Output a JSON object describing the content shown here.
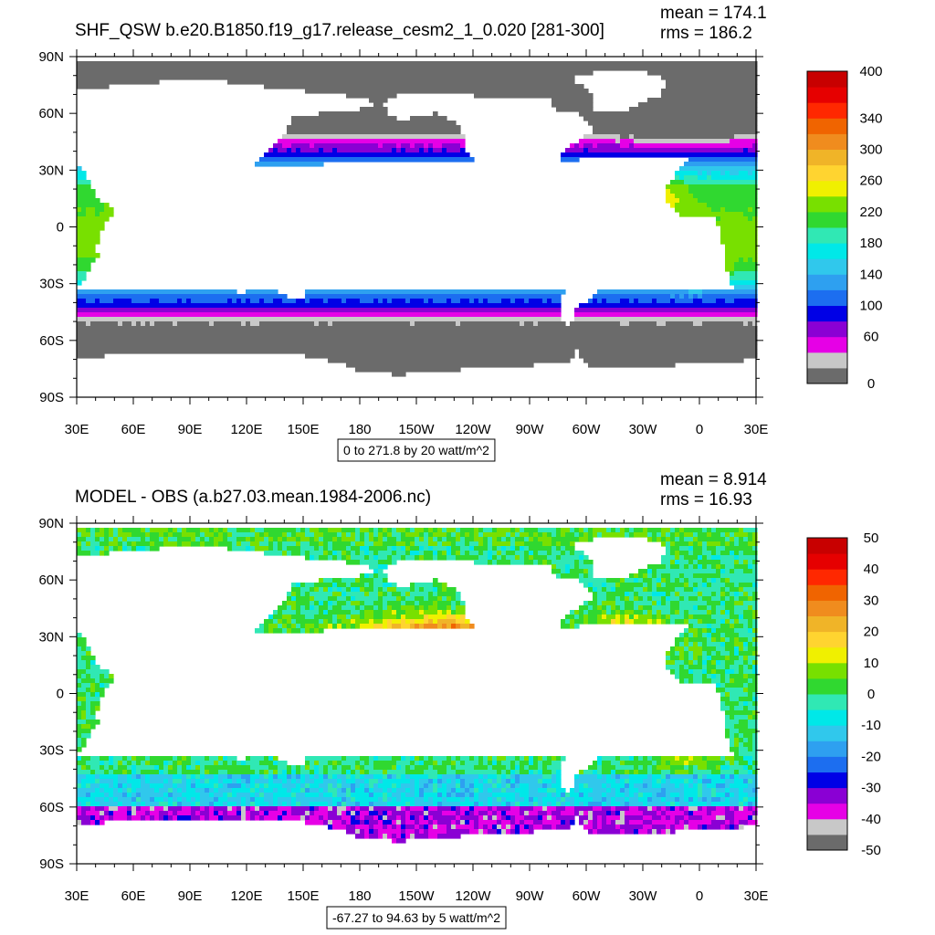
{
  "panels": [
    {
      "id": "top",
      "title": "SHF_QSW b.e20.B1850.f19_g17.release_cesm2_1_0.020 [281-300]",
      "mean_text": "mean = 174.1",
      "rms_text": "rms = 186.2",
      "range_text": "0 to 271.8 by 20 watt/m^2",
      "colorbar": {
        "colors": [
          "#6b6b6b",
          "#c8c8c8",
          "#e600e6",
          "#8a00d4",
          "#0000e6",
          "#1c6ef0",
          "#2ea0f0",
          "#30c8ec",
          "#00e8e8",
          "#30e8b4",
          "#30d830",
          "#78e000",
          "#f0f000",
          "#ffd430",
          "#f0b428",
          "#f08c1e",
          "#f06400",
          "#ff2800",
          "#e60000",
          "#c80000"
        ],
        "labels": [
          {
            "text": "400",
            "level": 20
          },
          {
            "text": "340",
            "level": 17
          },
          {
            "text": "300",
            "level": 15
          },
          {
            "text": "260",
            "level": 13
          },
          {
            "text": "220",
            "level": 11
          },
          {
            "text": "180",
            "level": 9
          },
          {
            "text": "140",
            "level": 7
          },
          {
            "text": "100",
            "level": 5
          },
          {
            "text": "60",
            "level": 3
          },
          {
            "text": "0",
            "level": 0
          }
        ]
      }
    },
    {
      "id": "bottom",
      "title": "MODEL - OBS (a.b27.03.mean.1984-2006.nc)",
      "mean_text": "mean = 8.914",
      "rms_text": "rms = 16.93",
      "range_text": "-67.27 to 94.63 by 5 watt/m^2",
      "colorbar": {
        "colors": [
          "#6b6b6b",
          "#c8c8c8",
          "#e600e6",
          "#8a00d4",
          "#0000e6",
          "#1c6ef0",
          "#2ea0f0",
          "#30c8ec",
          "#00e8e8",
          "#30e8b4",
          "#30d830",
          "#78e000",
          "#f0f000",
          "#ffd430",
          "#f0b428",
          "#f08c1e",
          "#f06400",
          "#ff2800",
          "#e60000",
          "#c80000"
        ],
        "labels": [
          {
            "text": "50",
            "level": 20
          },
          {
            "text": "40",
            "level": 18
          },
          {
            "text": "30",
            "level": 16
          },
          {
            "text": "20",
            "level": 14
          },
          {
            "text": "10",
            "level": 12
          },
          {
            "text": "0",
            "level": 10
          },
          {
            "text": "-10",
            "level": 8
          },
          {
            "text": "-20",
            "level": 6
          },
          {
            "text": "-30",
            "level": 4
          },
          {
            "text": "-40",
            "level": 2
          },
          {
            "text": "-50",
            "level": 0
          }
        ]
      }
    }
  ],
  "lat_ticks": [
    "90N",
    "60N",
    "30N",
    "0",
    "30S",
    "60S",
    "90S"
  ],
  "lon_ticks": [
    "30E",
    "60E",
    "90E",
    "120E",
    "150E",
    "180",
    "150W",
    "120W",
    "90W",
    "60W",
    "30W",
    "0",
    "30E"
  ],
  "land_color": "#ffffff"
}
